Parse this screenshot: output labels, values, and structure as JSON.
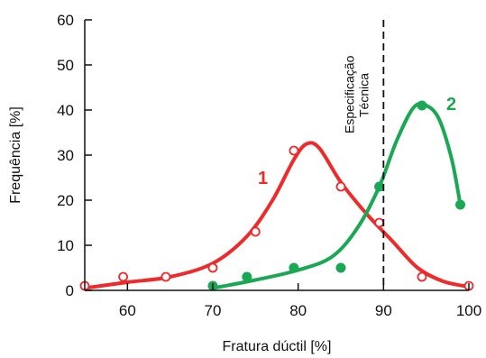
{
  "chart_data": {
    "type": "line",
    "title": "",
    "xlabel": "Fratura dúctil [%]",
    "ylabel": "Frequência [%]",
    "xlim": [
      55,
      100
    ],
    "ylim": [
      0,
      60
    ],
    "xticks": [
      60,
      70,
      80,
      90,
      100
    ],
    "yticks": [
      0,
      10,
      20,
      30,
      40,
      50,
      60
    ],
    "grid": false,
    "legend": "none",
    "vline": {
      "x": 90,
      "style": "dashed",
      "color": "#111111",
      "label_lines": [
        "Especificação",
        "Técnica"
      ]
    },
    "series": [
      {
        "name": "1",
        "color": "#ee2a2a",
        "marker": "open-circle",
        "points": [
          {
            "x": 55,
            "y": 1
          },
          {
            "x": 59.5,
            "y": 3
          },
          {
            "x": 64.5,
            "y": 3
          },
          {
            "x": 70,
            "y": 5
          },
          {
            "x": 75,
            "y": 13
          },
          {
            "x": 79.5,
            "y": 31
          },
          {
            "x": 85,
            "y": 23
          },
          {
            "x": 89.5,
            "y": 15
          },
          {
            "x": 94.5,
            "y": 3
          },
          {
            "x": 100,
            "y": 1
          }
        ],
        "curve": [
          {
            "x": 55,
            "y": 0.5
          },
          {
            "x": 60,
            "y": 1.8
          },
          {
            "x": 65,
            "y": 3
          },
          {
            "x": 70,
            "y": 6
          },
          {
            "x": 74,
            "y": 12
          },
          {
            "x": 77,
            "y": 20
          },
          {
            "x": 79.5,
            "y": 29
          },
          {
            "x": 81,
            "y": 32.5
          },
          {
            "x": 82.5,
            "y": 31.5
          },
          {
            "x": 85,
            "y": 24
          },
          {
            "x": 88,
            "y": 17
          },
          {
            "x": 91,
            "y": 11
          },
          {
            "x": 94,
            "y": 5
          },
          {
            "x": 97,
            "y": 2
          },
          {
            "x": 100,
            "y": 0.8
          }
        ]
      },
      {
        "name": "2",
        "color": "#1aa855",
        "marker": "filled-circle",
        "points": [
          {
            "x": 70,
            "y": 1
          },
          {
            "x": 74,
            "y": 3
          },
          {
            "x": 79.5,
            "y": 5
          },
          {
            "x": 85,
            "y": 5
          },
          {
            "x": 89.5,
            "y": 23
          },
          {
            "x": 94.5,
            "y": 41
          },
          {
            "x": 99,
            "y": 19
          }
        ],
        "curve": [
          {
            "x": 70,
            "y": 0.5
          },
          {
            "x": 75,
            "y": 2.3
          },
          {
            "x": 80,
            "y": 4.5
          },
          {
            "x": 84,
            "y": 7.5
          },
          {
            "x": 87,
            "y": 14
          },
          {
            "x": 89.5,
            "y": 23
          },
          {
            "x": 91.5,
            "y": 33
          },
          {
            "x": 93.5,
            "y": 40.5
          },
          {
            "x": 95,
            "y": 41
          },
          {
            "x": 96.5,
            "y": 38
          },
          {
            "x": 98,
            "y": 29
          },
          {
            "x": 99,
            "y": 19
          }
        ]
      }
    ]
  }
}
